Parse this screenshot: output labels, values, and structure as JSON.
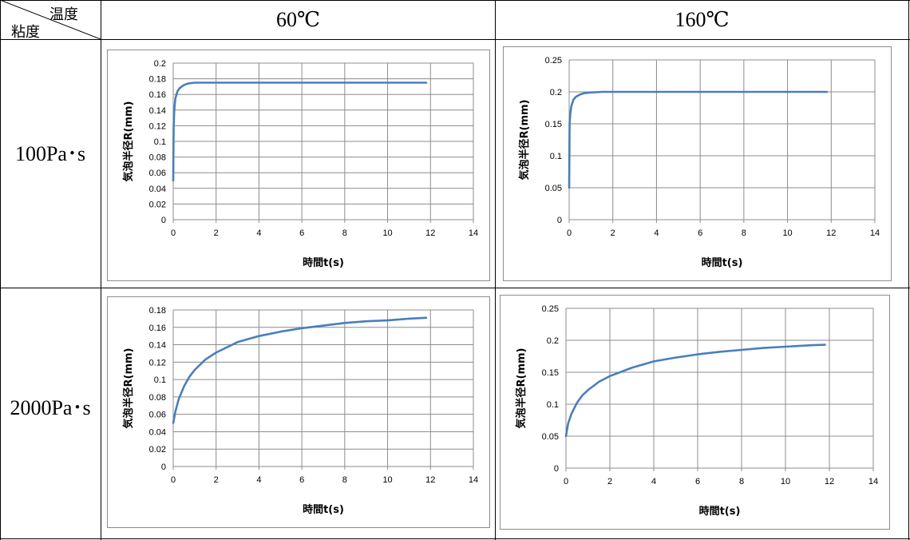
{
  "table": {
    "corner_top": "温度",
    "corner_bottom": "粘度",
    "col_headers": [
      "60℃",
      "160℃"
    ],
    "row_headers": [
      "100Pa･s",
      "2000Pa･s"
    ]
  },
  "colors": {
    "series": "#4a7ebb",
    "grid": "#8c8c8c"
  },
  "chart_data": [
    {
      "type": "line",
      "title": "",
      "xlabel": "時間t(s)",
      "ylabel": "気泡半径R(mm)",
      "xlim": [
        0,
        14
      ],
      "ylim": [
        0,
        0.2
      ],
      "x_ticks": [
        "0",
        "2",
        "4",
        "6",
        "8",
        "10",
        "12",
        "14"
      ],
      "y_ticks": [
        "0",
        "0.02",
        "0.04",
        "0.06",
        "0.08",
        "0.1",
        "0.12",
        "0.14",
        "0.16",
        "0.18",
        "0.2"
      ],
      "grid": true,
      "series": [
        {
          "x": [
            0,
            0.02,
            0.05,
            0.1,
            0.2,
            0.3,
            0.5,
            0.7,
            1.0,
            1.5,
            2,
            4,
            6,
            8,
            10,
            11.8
          ],
          "values": [
            0.05,
            0.12,
            0.14,
            0.155,
            0.164,
            0.168,
            0.172,
            0.174,
            0.175,
            0.175,
            0.175,
            0.175,
            0.175,
            0.175,
            0.175,
            0.175
          ]
        }
      ]
    },
    {
      "type": "line",
      "title": "",
      "xlabel": "時間t(s)",
      "ylabel": "気泡半径R(mm)",
      "xlim": [
        0,
        14
      ],
      "ylim": [
        0,
        0.25
      ],
      "x_ticks": [
        "0",
        "2",
        "4",
        "6",
        "8",
        "10",
        "12",
        "14"
      ],
      "y_ticks": [
        "0",
        "0.05",
        "0.1",
        "0.15",
        "0.2",
        "0.25"
      ],
      "grid": true,
      "series": [
        {
          "x": [
            0,
            0.02,
            0.05,
            0.1,
            0.2,
            0.3,
            0.5,
            0.7,
            1.0,
            1.5,
            2,
            4,
            6,
            8,
            10,
            11.8
          ],
          "values": [
            0.05,
            0.15,
            0.165,
            0.178,
            0.188,
            0.192,
            0.196,
            0.198,
            0.199,
            0.2,
            0.2,
            0.2,
            0.2,
            0.2,
            0.2,
            0.2
          ]
        }
      ]
    },
    {
      "type": "line",
      "title": "",
      "xlabel": "時間t(s)",
      "ylabel": "気泡半径R(mm)",
      "xlim": [
        0,
        14
      ],
      "ylim": [
        0,
        0.18
      ],
      "x_ticks": [
        "0",
        "2",
        "4",
        "6",
        "8",
        "10",
        "12",
        "14"
      ],
      "y_ticks": [
        "0",
        "0.02",
        "0.04",
        "0.06",
        "0.08",
        "0.1",
        "0.12",
        "0.14",
        "0.16",
        "0.18"
      ],
      "grid": true,
      "series": [
        {
          "x": [
            0,
            0.1,
            0.25,
            0.5,
            0.75,
            1,
            1.5,
            2,
            3,
            4,
            5,
            6,
            7,
            8,
            9,
            10,
            11,
            11.8
          ],
          "values": [
            0.05,
            0.063,
            0.077,
            0.092,
            0.103,
            0.111,
            0.123,
            0.131,
            0.143,
            0.15,
            0.155,
            0.159,
            0.162,
            0.165,
            0.167,
            0.168,
            0.17,
            0.171
          ]
        }
      ]
    },
    {
      "type": "line",
      "title": "",
      "xlabel": "時間t(s)",
      "ylabel": "気泡半径R(mm)",
      "xlim": [
        0,
        14
      ],
      "ylim": [
        0,
        0.25
      ],
      "x_ticks": [
        "0",
        "2",
        "4",
        "6",
        "8",
        "10",
        "12",
        "14"
      ],
      "y_ticks": [
        "0",
        "0.05",
        "0.1",
        "0.15",
        "0.2",
        "0.25"
      ],
      "grid": true,
      "series": [
        {
          "x": [
            0,
            0.1,
            0.25,
            0.5,
            0.75,
            1,
            1.5,
            2,
            3,
            4,
            5,
            6,
            7,
            8,
            9,
            10,
            11,
            11.8
          ],
          "values": [
            0.05,
            0.07,
            0.085,
            0.102,
            0.114,
            0.122,
            0.135,
            0.144,
            0.157,
            0.167,
            0.173,
            0.178,
            0.182,
            0.185,
            0.188,
            0.19,
            0.192,
            0.193
          ]
        }
      ]
    }
  ]
}
